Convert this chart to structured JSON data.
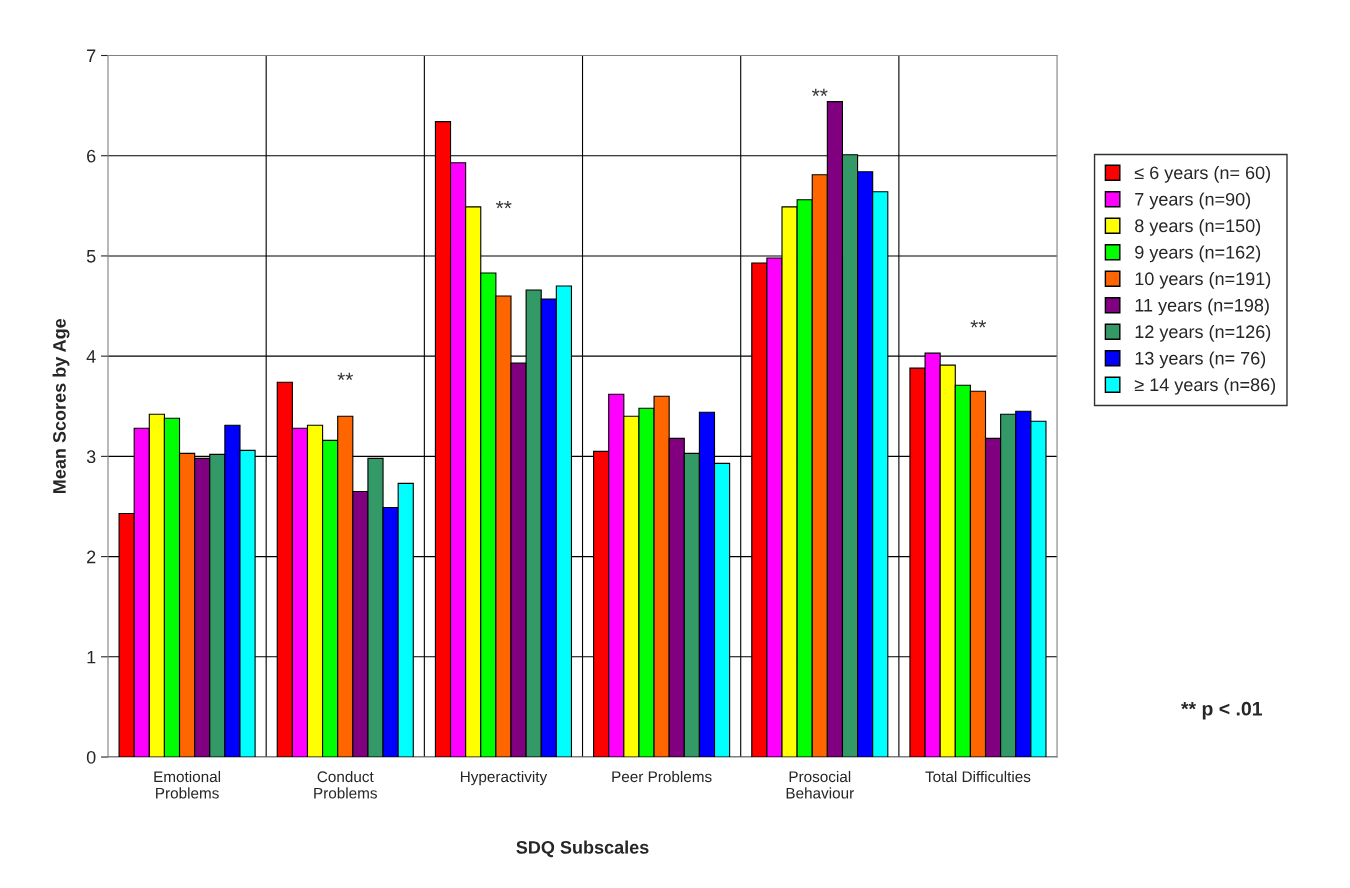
{
  "chart_data": {
    "type": "bar",
    "xlabel": "SDQ Subscales",
    "ylabel": "Mean Scores by Age",
    "categories": [
      "Emotional\nProblems",
      "Conduct\nProblems",
      "Hyperactivity",
      "Peer Problems",
      "Prosocial\nBehaviour",
      "Total Difficulties"
    ],
    "series": [
      {
        "name": "≤ 6 years (n= 60)",
        "color": "#ff0000",
        "values": [
          2.43,
          3.74,
          6.34,
          3.05,
          4.93,
          3.88
        ]
      },
      {
        "name": "7 years (n=90)",
        "color": "#ff00ff",
        "values": [
          3.28,
          3.28,
          5.93,
          3.62,
          4.98,
          4.03
        ]
      },
      {
        "name": "8 years (n=150)",
        "color": "#ffff00",
        "values": [
          3.42,
          3.31,
          5.49,
          3.4,
          5.49,
          3.91
        ]
      },
      {
        "name": "9 years (n=162)",
        "color": "#00ff00",
        "values": [
          3.38,
          3.16,
          4.83,
          3.48,
          5.56,
          3.71
        ]
      },
      {
        "name": "10 years (n=191)",
        "color": "#ff6600",
        "values": [
          3.03,
          3.4,
          4.6,
          3.6,
          5.81,
          3.65
        ]
      },
      {
        "name": "11 years (n=198)",
        "color": "#800080",
        "values": [
          2.98,
          2.65,
          3.93,
          3.18,
          6.54,
          3.18
        ]
      },
      {
        "name": "12 years (n=126)",
        "color": "#339966",
        "values": [
          3.02,
          2.98,
          4.66,
          3.03,
          6.01,
          3.42
        ]
      },
      {
        "name": "13 years (n= 76)",
        "color": "#0000ff",
        "values": [
          3.31,
          2.49,
          4.57,
          3.44,
          5.84,
          3.45
        ]
      },
      {
        "name": "≥ 14 years (n=86)",
        "color": "#00ffff",
        "values": [
          3.06,
          2.73,
          4.7,
          2.93,
          5.64,
          3.35
        ]
      }
    ],
    "ylim": [
      0,
      7
    ],
    "yticks": [
      0,
      1,
      2,
      3,
      4,
      5,
      6,
      7
    ],
    "grid": true,
    "legend": "right",
    "annotations": [
      "**",
      "**",
      "**",
      "**",
      "** p < .01"
    ]
  }
}
